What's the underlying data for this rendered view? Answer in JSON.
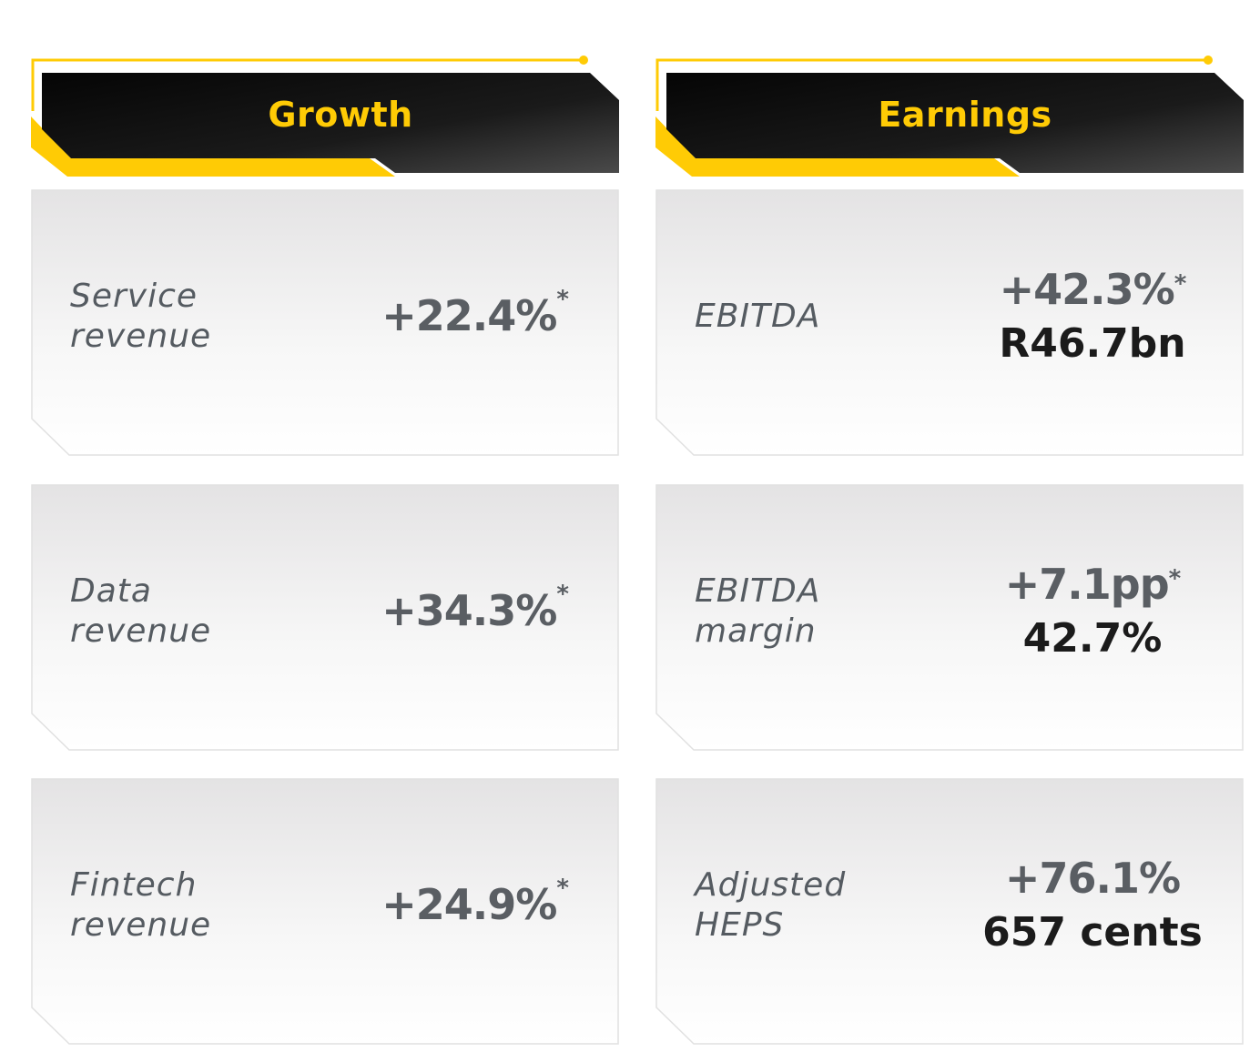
{
  "colors": {
    "accent_yellow": "#ffcb05",
    "header_dark": "#111111",
    "card_top": "#e4e3e4",
    "card_bottom": "#ffffff",
    "metric_grey": "#5a5e63",
    "metric_black": "#1b1b1b",
    "label_grey": "#555b61"
  },
  "growth": {
    "title": "Growth",
    "cards": [
      {
        "label_line1": "Service",
        "label_line2": "revenue",
        "value": "+22.4%",
        "asterisk": "*"
      },
      {
        "label_line1": "Data",
        "label_line2": "revenue",
        "value": "+34.3%",
        "asterisk": "*"
      },
      {
        "label_line1": "Fintech",
        "label_line2": "revenue",
        "value": "+24.9%",
        "asterisk": "*"
      }
    ]
  },
  "earnings": {
    "title": "Earnings",
    "cards": [
      {
        "label_line1": "EBITDA",
        "label_line2": "",
        "change": "+42.3%",
        "asterisk": "*",
        "value": "R46.7bn"
      },
      {
        "label_line1": "EBITDA",
        "label_line2": "margin",
        "change": "+7.1pp",
        "asterisk": "*",
        "value": "42.7%"
      },
      {
        "label_line1": "Adjusted",
        "label_line2": "HEPS",
        "change": "+76.1%",
        "asterisk": "",
        "value": "657 cents"
      }
    ]
  }
}
